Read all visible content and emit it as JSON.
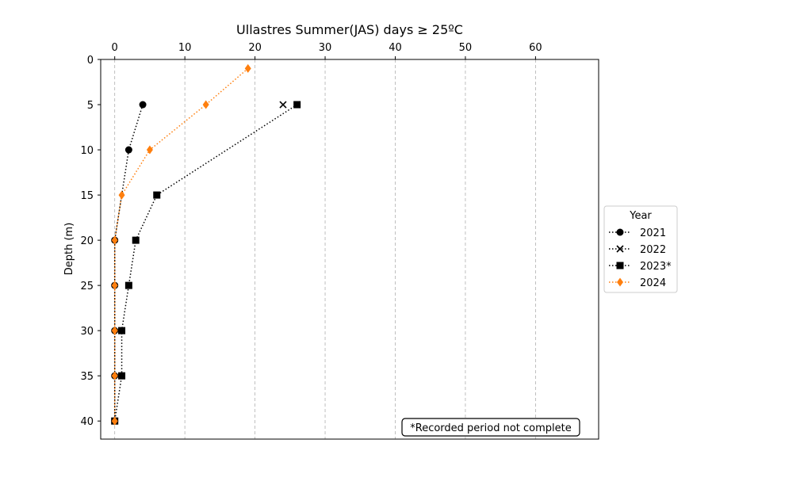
{
  "chart_data": {
    "type": "line",
    "title": "Ullastres Summer(JAS) days ≥ 25ºC",
    "xlabel": "",
    "ylabel": "Depth (m)",
    "xlim": [
      -2,
      69
    ],
    "ylim": [
      42,
      0
    ],
    "x_axis_position": "top",
    "y_inverted": true,
    "x_ticks": [
      0,
      10,
      20,
      30,
      40,
      50,
      60
    ],
    "y_ticks": [
      0,
      5,
      10,
      15,
      20,
      25,
      30,
      35,
      40
    ],
    "grid": "vertical dashed lines at x ticks",
    "legend": {
      "title": "Year",
      "placement": "outside right, vertically centered"
    },
    "series": [
      {
        "name": "2021",
        "color": "#000000",
        "marker": "circle",
        "linestyle": "dotted",
        "points": [
          {
            "x": 4,
            "y": 5
          },
          {
            "x": 2,
            "y": 10
          },
          {
            "x": 0,
            "y": 20
          },
          {
            "x": 0,
            "y": 25
          },
          {
            "x": 0,
            "y": 30
          },
          {
            "x": 0,
            "y": 35
          },
          {
            "x": 0,
            "y": 40
          }
        ]
      },
      {
        "name": "2022",
        "color": "#000000",
        "marker": "x",
        "linestyle": "dotted",
        "points": [
          {
            "x": 24,
            "y": 5
          }
        ]
      },
      {
        "name": "2023*",
        "color": "#000000",
        "marker": "square",
        "linestyle": "dotted",
        "points": [
          {
            "x": 26,
            "y": 5
          },
          {
            "x": 6,
            "y": 15
          },
          {
            "x": 3,
            "y": 20
          },
          {
            "x": 2,
            "y": 25
          },
          {
            "x": 1,
            "y": 30
          },
          {
            "x": 1,
            "y": 35
          },
          {
            "x": 0,
            "y": 40
          }
        ]
      },
      {
        "name": "2024",
        "color": "#ff7f0e",
        "marker": "diamond",
        "linestyle": "dotted",
        "points": [
          {
            "x": 19,
            "y": 1
          },
          {
            "x": 13,
            "y": 5
          },
          {
            "x": 5,
            "y": 10
          },
          {
            "x": 1,
            "y": 15
          },
          {
            "x": 0,
            "y": 20
          },
          {
            "x": 0,
            "y": 25
          },
          {
            "x": 0,
            "y": 30
          },
          {
            "x": 0,
            "y": 35
          },
          {
            "x": 0,
            "y": 40
          }
        ]
      }
    ],
    "annotation": "*Recorded period not complete"
  }
}
